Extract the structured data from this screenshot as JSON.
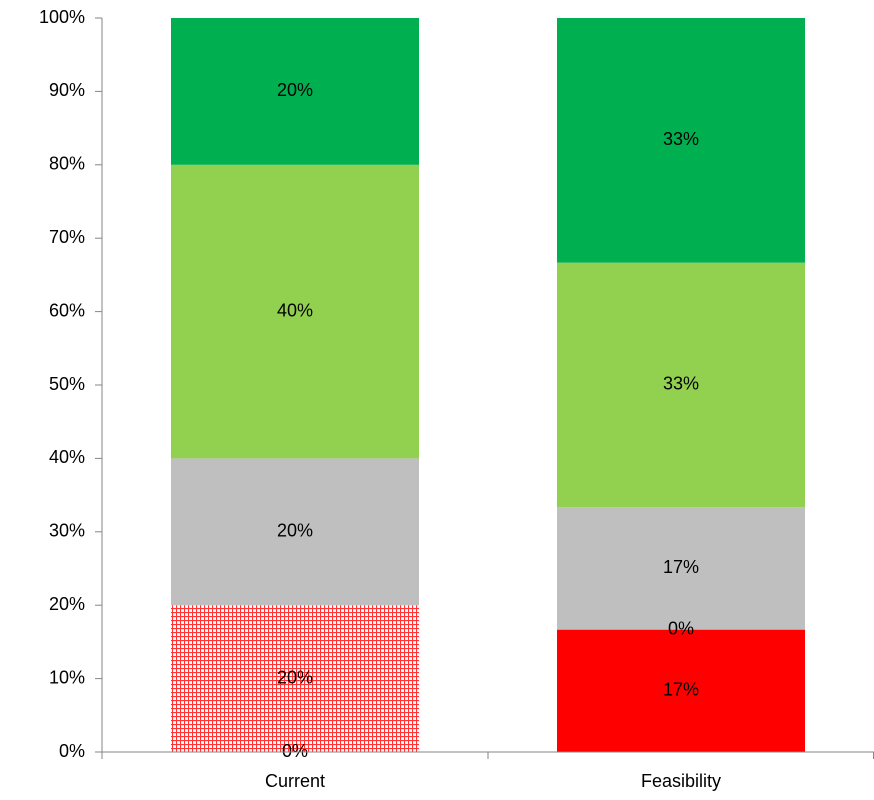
{
  "chart_data": {
    "type": "stacked_bar",
    "categories": [
      "Current",
      "Feasibility"
    ],
    "series": [
      {
        "color": "#ff0000",
        "values": [
          0,
          16.67
        ],
        "value_labels": [
          "0%",
          "17%"
        ]
      },
      {
        "color": "#ff0000",
        "hatch": true,
        "values": [
          20,
          0
        ],
        "value_labels": [
          "20%",
          "0%"
        ]
      },
      {
        "color": "#bfbfbf",
        "values": [
          20,
          16.67
        ],
        "value_labels": [
          "20%",
          "17%"
        ]
      },
      {
        "color": "#92d050",
        "values": [
          40,
          33.33
        ],
        "value_labels": [
          "40%",
          "33%"
        ]
      },
      {
        "color": "#00b050",
        "values": [
          20,
          33.33
        ],
        "value_labels": [
          "20%",
          "33%"
        ]
      }
    ],
    "ylim": [
      0,
      100
    ],
    "yticks": [
      {
        "value": 0,
        "label": "0%"
      },
      {
        "value": 10,
        "label": "10%"
      },
      {
        "value": 20,
        "label": "20%"
      },
      {
        "value": 30,
        "label": "30%"
      },
      {
        "value": 40,
        "label": "40%"
      },
      {
        "value": 50,
        "label": "50%"
      },
      {
        "value": 60,
        "label": "60%"
      },
      {
        "value": 70,
        "label": "70%"
      },
      {
        "value": 80,
        "label": "80%"
      },
      {
        "value": 90,
        "label": "90%"
      },
      {
        "value": 100,
        "label": "100%"
      }
    ],
    "grid": false
  }
}
